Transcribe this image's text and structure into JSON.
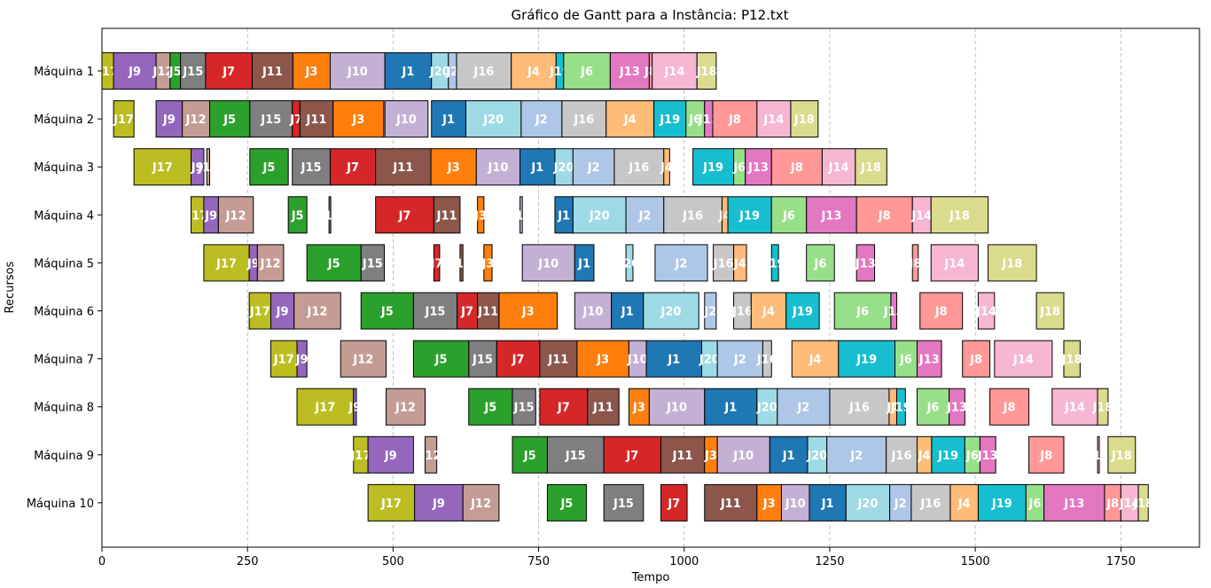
{
  "chart_data": {
    "type": "gantt",
    "title": "Gráfico de Gantt para a Instância: P12.txt",
    "xlabel": "Tempo",
    "ylabel": "Recursos",
    "xlim": [
      0,
      1885
    ],
    "xticks": [
      0,
      250,
      500,
      750,
      1000,
      1250,
      1500,
      1750
    ],
    "grid": "vertical dashed",
    "colors": {
      "J1": "#1f77b4",
      "J2": "#aec7e8",
      "J3": "#ff7f0e",
      "J4": "#ffbb78",
      "J5": "#2ca02c",
      "J6": "#98df8a",
      "J7": "#d62728",
      "J8": "#ff9896",
      "J9": "#9467bd",
      "J10": "#c5b0d5",
      "J11": "#8c564b",
      "J12": "#c49c94",
      "J13": "#e377c2",
      "J14": "#f7b6d2",
      "J15": "#7f7f7f",
      "J16": "#c7c7c7",
      "J17": "#bcbd22",
      "J18": "#dbdb8d",
      "J19": "#17becf",
      "J20": "#9edae5"
    },
    "machines": [
      {
        "name": "Máquina 1",
        "tasks": [
          [
            "J17",
            0,
            20
          ],
          [
            "J9",
            20,
            93
          ],
          [
            "J12",
            93,
            117
          ],
          [
            "J5",
            117,
            135
          ],
          [
            "J15",
            135,
            178
          ],
          [
            "J7",
            178,
            258
          ],
          [
            "J11",
            258,
            328
          ],
          [
            "J3",
            328,
            392
          ],
          [
            "J10",
            392,
            486
          ],
          [
            "J1",
            486,
            566
          ],
          [
            "J20",
            566,
            595
          ],
          [
            "J2",
            595,
            609
          ],
          [
            "J16",
            609,
            703
          ],
          [
            "J4",
            703,
            780
          ],
          [
            "J19",
            780,
            793
          ],
          [
            "J6",
            793,
            873
          ],
          [
            "J13",
            873,
            940
          ],
          [
            "J8",
            940,
            945
          ],
          [
            "J14",
            945,
            1022
          ],
          [
            "J18",
            1022,
            1055
          ]
        ]
      },
      {
        "name": "Máquina 2",
        "tasks": [
          [
            "J17",
            20,
            55
          ],
          [
            "J9",
            93,
            138
          ],
          [
            "J12",
            138,
            185
          ],
          [
            "J5",
            185,
            254
          ],
          [
            "J15",
            254,
            327
          ],
          [
            "J7",
            327,
            340
          ],
          [
            "J11",
            340,
            397
          ],
          [
            "J3",
            397,
            484
          ],
          [
            "J10",
            486,
            560
          ],
          [
            "J1",
            566,
            625
          ],
          [
            "J20",
            625,
            720
          ],
          [
            "J2",
            720,
            790
          ],
          [
            "J16",
            790,
            866
          ],
          [
            "J4",
            866,
            948
          ],
          [
            "J19",
            948,
            1003
          ],
          [
            "J6",
            1003,
            1035
          ],
          [
            "J13",
            1035,
            1049
          ],
          [
            "J8",
            1049,
            1125
          ],
          [
            "J14",
            1125,
            1183
          ],
          [
            "J18",
            1183,
            1230
          ]
        ]
      },
      {
        "name": "Máquina 3",
        "tasks": [
          [
            "J17",
            55,
            153
          ],
          [
            "J9",
            153,
            175
          ],
          [
            "J12",
            180,
            185
          ],
          [
            "J5",
            254,
            320
          ],
          [
            "J15",
            327,
            392
          ],
          [
            "J7",
            392,
            470
          ],
          [
            "J11",
            470,
            565
          ],
          [
            "J3",
            565,
            643
          ],
          [
            "J10",
            643,
            718
          ],
          [
            "J1",
            718,
            778
          ],
          [
            "J20",
            778,
            809
          ],
          [
            "J2",
            809,
            880
          ],
          [
            "J16",
            880,
            965
          ],
          [
            "J4",
            965,
            975
          ],
          [
            "J19",
            1015,
            1085
          ],
          [
            "J6",
            1085,
            1105
          ],
          [
            "J13",
            1105,
            1150
          ],
          [
            "J8",
            1150,
            1237
          ],
          [
            "J14",
            1237,
            1294
          ],
          [
            "J18",
            1294,
            1348
          ]
        ]
      },
      {
        "name": "Máquina 4",
        "tasks": [
          [
            "J17",
            153,
            175
          ],
          [
            "J9",
            175,
            200
          ],
          [
            "J12",
            200,
            260
          ],
          [
            "J5",
            320,
            352
          ],
          [
            "J15",
            390,
            393
          ],
          [
            "J7",
            470,
            570
          ],
          [
            "J11",
            570,
            615
          ],
          [
            "J3",
            645,
            656
          ],
          [
            "J10",
            718,
            722
          ],
          [
            "J1",
            778,
            809
          ],
          [
            "J20",
            809,
            900
          ],
          [
            "J2",
            900,
            965
          ],
          [
            "J16",
            965,
            1065
          ],
          [
            "J4",
            1065,
            1075
          ],
          [
            "J19",
            1075,
            1150
          ],
          [
            "J6",
            1150,
            1210
          ],
          [
            "J13",
            1210,
            1296
          ],
          [
            "J8",
            1296,
            1392
          ],
          [
            "J14",
            1392,
            1424
          ],
          [
            "J18",
            1424,
            1522
          ]
        ]
      },
      {
        "name": "Máquina 5",
        "tasks": [
          [
            "J17",
            175,
            253
          ],
          [
            "J9",
            253,
            267
          ],
          [
            "J12",
            267,
            312
          ],
          [
            "J5",
            352,
            445
          ],
          [
            "J15",
            445,
            485
          ],
          [
            "J7",
            570,
            580
          ],
          [
            "J11",
            615,
            620
          ],
          [
            "J3",
            656,
            670
          ],
          [
            "J10",
            722,
            812
          ],
          [
            "J1",
            812,
            845
          ],
          [
            "J20",
            900,
            912
          ],
          [
            "J2",
            950,
            1040
          ],
          [
            "J16",
            1050,
            1085
          ],
          [
            "J4",
            1085,
            1107
          ],
          [
            "J19",
            1150,
            1162
          ],
          [
            "J6",
            1210,
            1258
          ],
          [
            "J13",
            1296,
            1327
          ],
          [
            "J8",
            1392,
            1402
          ],
          [
            "J14",
            1424,
            1505
          ],
          [
            "J18",
            1522,
            1605
          ]
        ]
      },
      {
        "name": "Máquina 6",
        "tasks": [
          [
            "J17",
            253,
            290
          ],
          [
            "J9",
            290,
            330
          ],
          [
            "J12",
            330,
            410
          ],
          [
            "J5",
            445,
            535
          ],
          [
            "J15",
            535,
            610
          ],
          [
            "J7",
            610,
            645
          ],
          [
            "J11",
            645,
            682
          ],
          [
            "J3",
            682,
            782
          ],
          [
            "J10",
            812,
            875
          ],
          [
            "J1",
            875,
            930
          ],
          [
            "J20",
            930,
            1025
          ],
          [
            "J2",
            1035,
            1055
          ],
          [
            "J16",
            1085,
            1115
          ],
          [
            "J4",
            1115,
            1175
          ],
          [
            "J19",
            1175,
            1232
          ],
          [
            "J6",
            1258,
            1355
          ],
          [
            "J13",
            1355,
            1365
          ],
          [
            "J8",
            1405,
            1478
          ],
          [
            "J14",
            1505,
            1533
          ],
          [
            "J18",
            1605,
            1652
          ]
        ]
      },
      {
        "name": "Máquina 7",
        "tasks": [
          [
            "J17",
            290,
            335
          ],
          [
            "J9",
            335,
            352
          ],
          [
            "J12",
            410,
            488
          ],
          [
            "J5",
            535,
            630
          ],
          [
            "J15",
            630,
            678
          ],
          [
            "J7",
            678,
            752
          ],
          [
            "J11",
            752,
            816
          ],
          [
            "J3",
            816,
            905
          ],
          [
            "J10",
            905,
            935
          ],
          [
            "J1",
            935,
            1030
          ],
          [
            "J20",
            1030,
            1057
          ],
          [
            "J2",
            1057,
            1135
          ],
          [
            "J16",
            1135,
            1150
          ],
          [
            "J4",
            1185,
            1265
          ],
          [
            "J19",
            1265,
            1362
          ],
          [
            "J6",
            1362,
            1400
          ],
          [
            "J13",
            1400,
            1442
          ],
          [
            "J8",
            1478,
            1525
          ],
          [
            "J14",
            1533,
            1632
          ],
          [
            "J18",
            1652,
            1680
          ]
        ]
      },
      {
        "name": "Máquina 8",
        "tasks": [
          [
            "J17",
            335,
            432
          ],
          [
            "J9",
            432,
            437
          ],
          [
            "J12",
            488,
            555
          ],
          [
            "J5",
            630,
            705
          ],
          [
            "J15",
            705,
            745
          ],
          [
            "J7",
            752,
            834
          ],
          [
            "J11",
            834,
            888
          ],
          [
            "J3",
            905,
            940
          ],
          [
            "J10",
            940,
            1035
          ],
          [
            "J1",
            1035,
            1125
          ],
          [
            "J20",
            1125,
            1160
          ],
          [
            "J2",
            1160,
            1250
          ],
          [
            "J16",
            1250,
            1352
          ],
          [
            "J4",
            1352,
            1365
          ],
          [
            "J19",
            1365,
            1380
          ],
          [
            "J6",
            1400,
            1455
          ],
          [
            "J13",
            1455,
            1482
          ],
          [
            "J8",
            1525,
            1592
          ],
          [
            "J14",
            1632,
            1710
          ],
          [
            "J18",
            1710,
            1728
          ]
        ]
      },
      {
        "name": "Máquina 9",
        "tasks": [
          [
            "J17",
            432,
            457
          ],
          [
            "J9",
            457,
            535
          ],
          [
            "J12",
            555,
            575
          ],
          [
            "J5",
            705,
            765
          ],
          [
            "J15",
            765,
            862
          ],
          [
            "J7",
            862,
            960
          ],
          [
            "J11",
            960,
            1035
          ],
          [
            "J3",
            1035,
            1057
          ],
          [
            "J10",
            1057,
            1147
          ],
          [
            "J1",
            1147,
            1212
          ],
          [
            "J20",
            1212,
            1245
          ],
          [
            "J2",
            1245,
            1347
          ],
          [
            "J16",
            1347,
            1400
          ],
          [
            "J4",
            1400,
            1425
          ],
          [
            "J19",
            1425,
            1482
          ],
          [
            "J6",
            1482,
            1508
          ],
          [
            "J13",
            1508,
            1535
          ],
          [
            "J8",
            1592,
            1652
          ],
          [
            "J14",
            1710,
            1713
          ],
          [
            "J18",
            1728,
            1775
          ]
        ]
      },
      {
        "name": "Máquina 10",
        "tasks": [
          [
            "J17",
            457,
            537
          ],
          [
            "J9",
            537,
            620
          ],
          [
            "J12",
            620,
            682
          ],
          [
            "J5",
            765,
            832
          ],
          [
            "J15",
            862,
            930
          ],
          [
            "J7",
            960,
            1005
          ],
          [
            "J11",
            1035,
            1125
          ],
          [
            "J3",
            1125,
            1167
          ],
          [
            "J10",
            1167,
            1215
          ],
          [
            "J1",
            1215,
            1278
          ],
          [
            "J20",
            1278,
            1353
          ],
          [
            "J2",
            1353,
            1390
          ],
          [
            "J16",
            1390,
            1457
          ],
          [
            "J4",
            1457,
            1505
          ],
          [
            "J19",
            1505,
            1587
          ],
          [
            "J6",
            1587,
            1618
          ],
          [
            "J13",
            1618,
            1722
          ],
          [
            "J8",
            1722,
            1750
          ],
          [
            "J14",
            1750,
            1780
          ],
          [
            "J18",
            1780,
            1797
          ]
        ]
      }
    ]
  }
}
